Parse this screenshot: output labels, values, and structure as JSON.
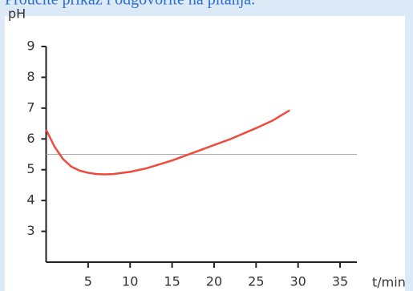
{
  "header": "Proučite prikaz i odgovorite na pitanja.",
  "chart_data": {
    "type": "line",
    "y_label": "pH",
    "x_label": "t/min",
    "x": [
      0,
      1,
      2,
      3,
      4,
      5,
      6,
      7,
      8,
      10,
      12,
      15,
      18,
      20,
      22,
      25,
      27,
      29
    ],
    "series": [
      {
        "name": "pH",
        "color": "#f04a3a",
        "values": [
          6.3,
          5.75,
          5.35,
          5.1,
          4.97,
          4.9,
          4.86,
          4.85,
          4.86,
          4.93,
          5.05,
          5.3,
          5.6,
          5.8,
          6.0,
          6.35,
          6.6,
          6.93
        ]
      }
    ],
    "reference_line": 5.5,
    "xlim": [
      0,
      37
    ],
    "xticks": [
      5,
      10,
      15,
      20,
      25,
      30,
      35
    ],
    "ylim": [
      2,
      9
    ],
    "yticks": [
      3,
      4,
      5,
      6,
      7,
      8,
      9
    ]
  }
}
